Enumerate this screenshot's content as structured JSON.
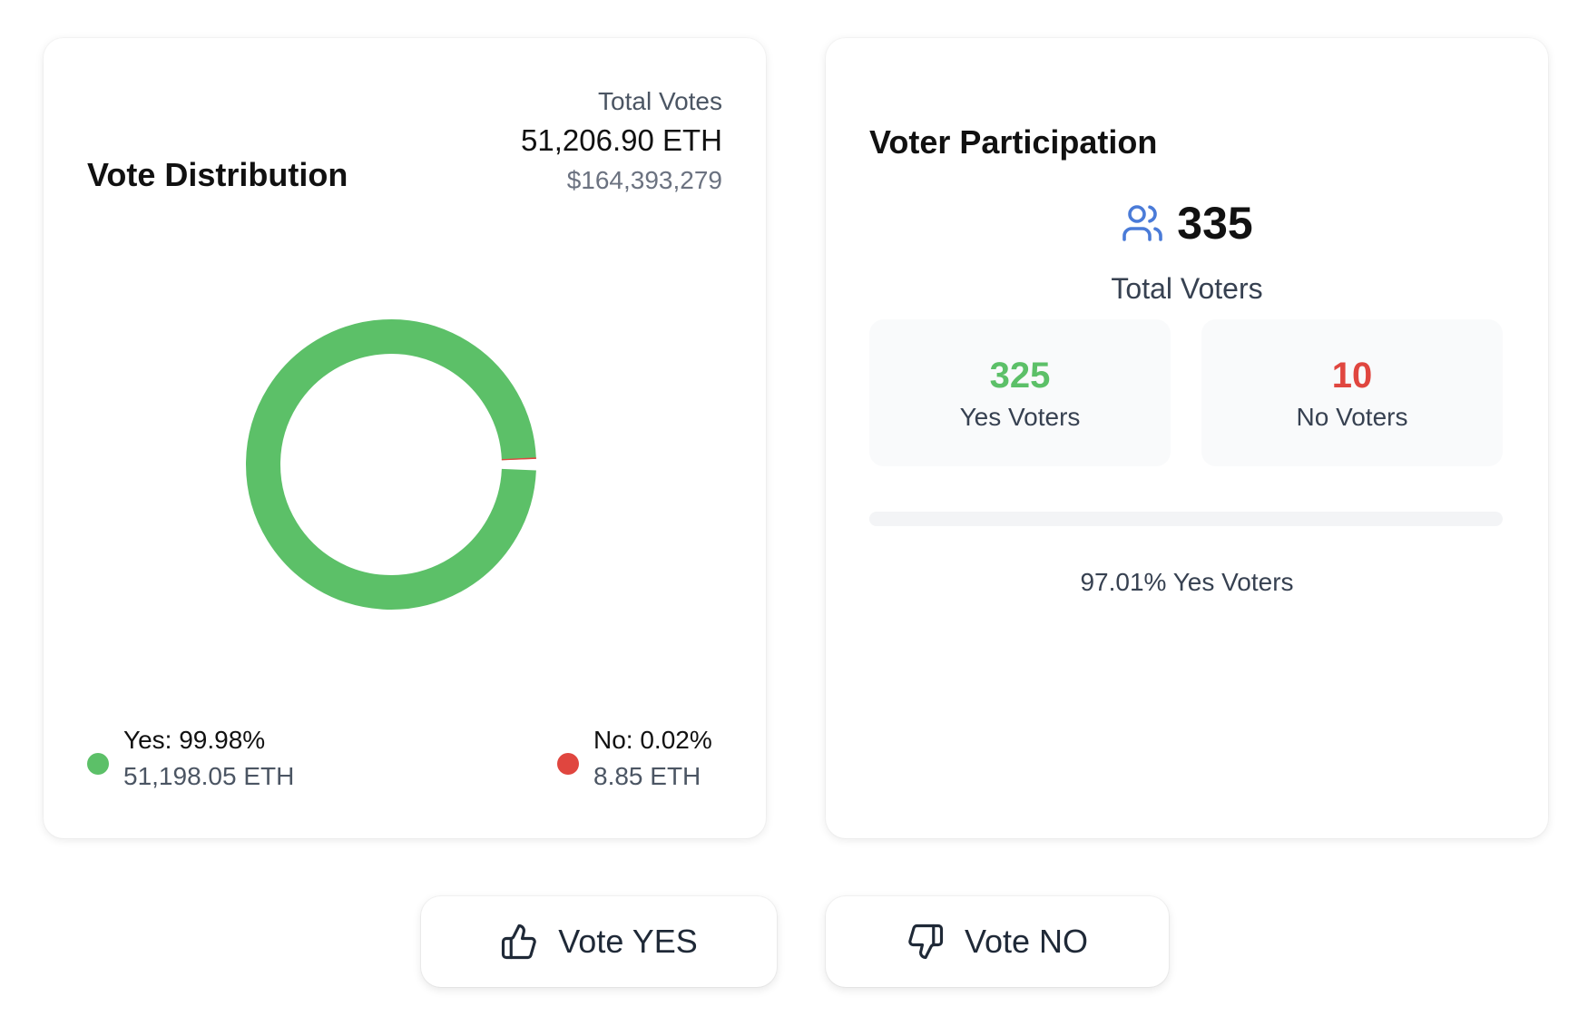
{
  "colors": {
    "yes": "#5cc068",
    "no": "#e0463f",
    "icon_blue": "#4a7bd8"
  },
  "distribution": {
    "title": "Vote Distribution",
    "total_label": "Total Votes",
    "total_eth": "51,206.90 ETH",
    "total_usd": "$164,393,279",
    "yes_label": "Yes: 99.98%",
    "yes_eth": "51,198.05 ETH",
    "no_label": "No: 0.02%",
    "no_eth": "8.85 ETH"
  },
  "chart_data": {
    "type": "pie",
    "categories": [
      "Yes",
      "No"
    ],
    "values": [
      51198.05,
      8.85
    ],
    "percentages": [
      99.98,
      0.02
    ],
    "colors": [
      "#5cc068",
      "#e0463f"
    ]
  },
  "participation": {
    "title": "Voter Participation",
    "total_voters": "335",
    "total_voters_label": "Total Voters",
    "yes_voters": "325",
    "yes_voters_label": "Yes Voters",
    "no_voters": "10",
    "no_voters_label": "No Voters",
    "yes_voter_fraction": 0.9701,
    "yes_voter_percent_text": "97.01% Yes Voters"
  },
  "buttons": {
    "vote_yes": "Vote YES",
    "vote_no": "Vote NO",
    "vote_yes_icon": "thumbs-up-icon",
    "vote_no_icon": "thumbs-down-icon"
  }
}
